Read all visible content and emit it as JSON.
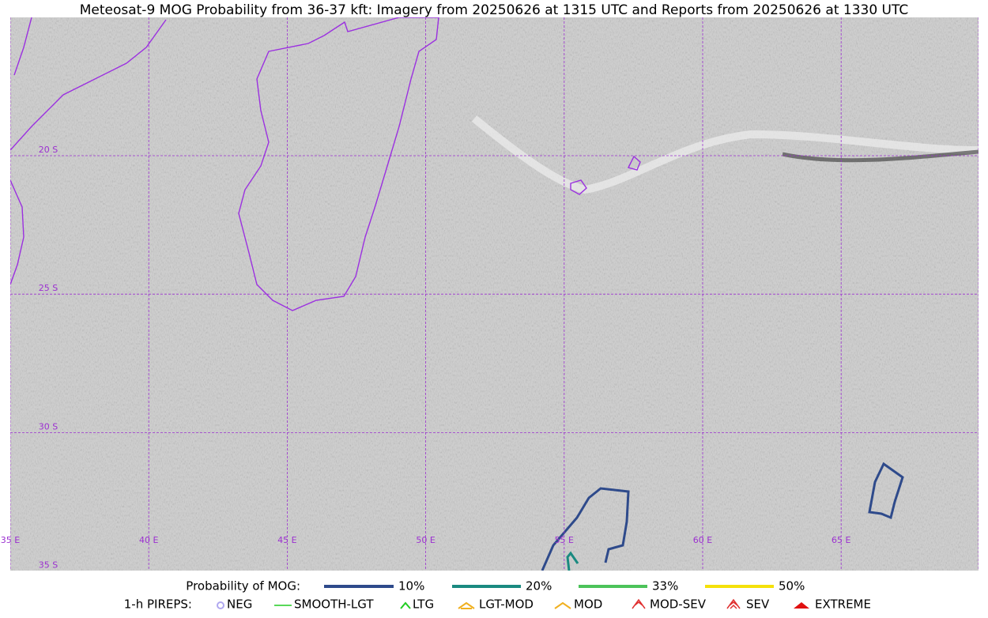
{
  "title": "Meteosat-9 MOG Probability from 36-37 kft: Imagery from 20250626 at 1315 UTC and Reports from 20250626 at 1330 UTC",
  "map": {
    "lat_labels": [
      "20 S",
      "25 S",
      "30 S",
      "35 S"
    ],
    "lon_labels": [
      "35 E",
      "40 E",
      "45 E",
      "50 E",
      "55 E",
      "60 E",
      "65 E"
    ]
  },
  "legend": {
    "probability": {
      "title": "Probability of MOG:",
      "items": [
        "10%",
        "20%",
        "33%",
        "50%"
      ]
    },
    "pireps": {
      "title": "1-h PIREPS:",
      "items": [
        "NEG",
        "SMOOTH-LGT",
        "LTG",
        "LGT-MOD",
        "MOD",
        "MOD-SEV",
        "SEV",
        "EXTREME"
      ]
    }
  }
}
